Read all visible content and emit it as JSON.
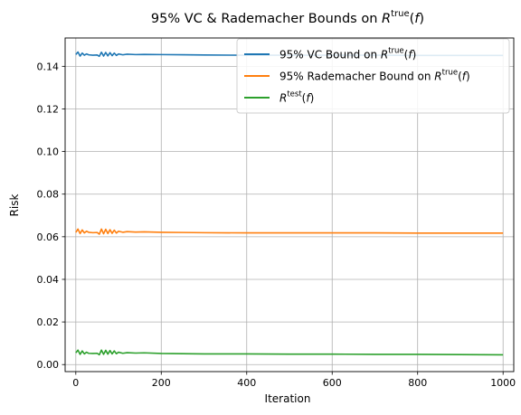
{
  "chart_data": {
    "type": "line",
    "title": "95% VC & Rademacher Bounds on R^true(f)",
    "xlabel": "Iteration",
    "ylabel": "Risk",
    "xlim": [
      -25,
      1025
    ],
    "ylim": [
      -0.0033,
      0.1533
    ],
    "xticks": [
      0,
      200,
      400,
      600,
      800,
      1000
    ],
    "xtick_labels": [
      "0",
      "200",
      "400",
      "600",
      "800",
      "1000"
    ],
    "yticks": [
      0.0,
      0.02,
      0.04,
      0.06,
      0.08,
      0.1,
      0.12,
      0.14
    ],
    "ytick_labels": [
      "0.00",
      "0.02",
      "0.04",
      "0.06",
      "0.08",
      "0.10",
      "0.12",
      "0.14"
    ],
    "grid": true,
    "legend_position": "upper-right",
    "series": [
      {
        "name": "95% VC Bound on R^true(f)",
        "color": "#1f77b4",
        "x": [
          0,
          5,
          10,
          15,
          20,
          25,
          30,
          40,
          50,
          55,
          60,
          65,
          70,
          75,
          80,
          85,
          90,
          95,
          100,
          110,
          120,
          140,
          160,
          200,
          250,
          300,
          400,
          500,
          600,
          700,
          800,
          900,
          1000
        ],
        "y": [
          0.1455,
          0.1467,
          0.1448,
          0.1462,
          0.1452,
          0.1458,
          0.1454,
          0.1452,
          0.1453,
          0.1447,
          0.1466,
          0.1448,
          0.1465,
          0.1449,
          0.1464,
          0.145,
          0.1462,
          0.1451,
          0.1458,
          0.1454,
          0.1457,
          0.1455,
          0.1456,
          0.1455,
          0.1454,
          0.1453,
          0.1452,
          0.1452,
          0.1452,
          0.1452,
          0.1451,
          0.1451,
          0.1451
        ]
      },
      {
        "name": "95% Rademacher Bound on R^true(f)",
        "color": "#ff7f0e",
        "x": [
          0,
          5,
          10,
          15,
          20,
          25,
          30,
          40,
          50,
          55,
          60,
          65,
          70,
          75,
          80,
          85,
          90,
          95,
          100,
          110,
          120,
          140,
          160,
          200,
          250,
          300,
          400,
          500,
          600,
          700,
          800,
          900,
          1000
        ],
        "y": [
          0.062,
          0.0636,
          0.0615,
          0.0632,
          0.0618,
          0.0626,
          0.0621,
          0.0619,
          0.062,
          0.0612,
          0.0636,
          0.0614,
          0.0635,
          0.0615,
          0.0633,
          0.0616,
          0.0631,
          0.0617,
          0.0626,
          0.0621,
          0.0624,
          0.0622,
          0.0623,
          0.0621,
          0.062,
          0.0619,
          0.0618,
          0.0618,
          0.0618,
          0.0618,
          0.0617,
          0.0617,
          0.0617
        ]
      },
      {
        "name": "R^test(f)",
        "color": "#2ca02c",
        "x": [
          0,
          5,
          10,
          15,
          20,
          25,
          30,
          40,
          50,
          55,
          60,
          65,
          70,
          75,
          80,
          85,
          90,
          95,
          100,
          110,
          120,
          140,
          160,
          200,
          250,
          300,
          400,
          500,
          600,
          700,
          800,
          900,
          1000
        ],
        "y": [
          0.0055,
          0.0068,
          0.0048,
          0.0064,
          0.005,
          0.0058,
          0.0053,
          0.0052,
          0.0053,
          0.0046,
          0.0068,
          0.0048,
          0.0067,
          0.0049,
          0.0066,
          0.005,
          0.0064,
          0.0051,
          0.0058,
          0.0053,
          0.0056,
          0.0054,
          0.0055,
          0.0052,
          0.0051,
          0.005,
          0.005,
          0.0049,
          0.0049,
          0.0048,
          0.0048,
          0.0047,
          0.0046
        ]
      }
    ]
  }
}
